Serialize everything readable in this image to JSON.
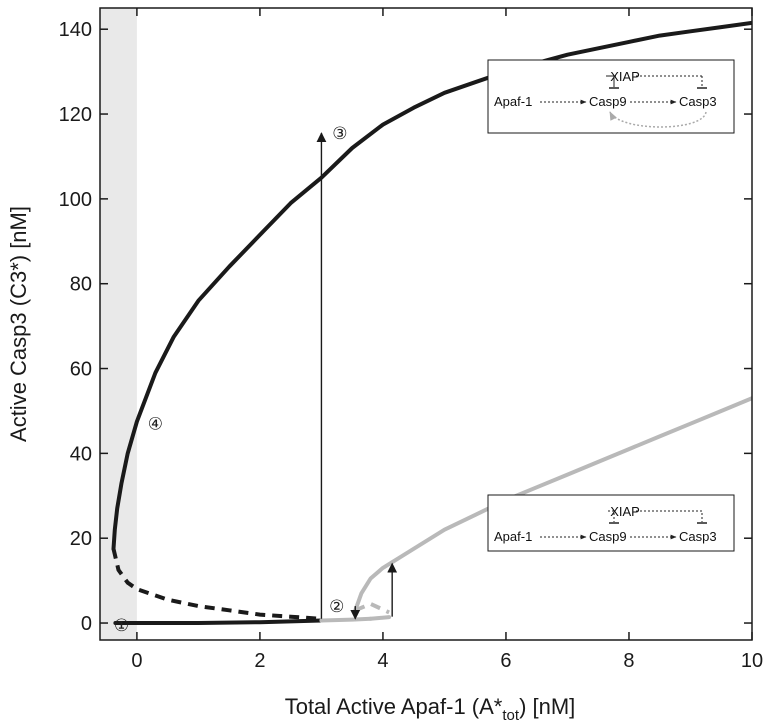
{
  "chart_data": {
    "type": "line",
    "xlabel_main": "Total Active Apaf-1 (A*",
    "xlabel_sub": "tot",
    "xlabel_tail": ") [nM]",
    "ylabel": "Active Casp3 (C3*) [nM]",
    "xlim": [
      -0.6,
      10
    ],
    "ylim": [
      -4,
      145
    ],
    "x_ticks": [
      "0",
      "2",
      "4",
      "6",
      "8",
      "10"
    ],
    "x_tick_values": [
      0,
      2,
      4,
      6,
      8,
      10
    ],
    "y_ticks": [
      "0",
      "20",
      "40",
      "60",
      "80",
      "100",
      "120",
      "140"
    ],
    "y_tick_values": [
      0,
      20,
      40,
      60,
      80,
      100,
      120,
      140
    ],
    "grid": false,
    "shaded_region": {
      "x": [
        -0.6,
        0
      ],
      "color": "#e9e9e9"
    },
    "series": [
      {
        "style": "solid",
        "color": "#1a1a1a",
        "points": [
          [
            -0.38,
            17.5
          ],
          [
            -0.36,
            22
          ],
          [
            -0.32,
            27
          ],
          [
            -0.25,
            33
          ],
          [
            -0.15,
            40
          ],
          [
            0,
            47.5
          ],
          [
            0.3,
            59
          ],
          [
            0.6,
            67.5
          ],
          [
            1,
            76
          ],
          [
            1.5,
            84
          ],
          [
            2,
            91.5
          ],
          [
            2.5,
            99
          ],
          [
            3,
            105
          ],
          [
            3.5,
            112
          ],
          [
            4,
            117.5
          ],
          [
            4.5,
            121.5
          ],
          [
            5,
            125
          ],
          [
            5.5,
            127.5
          ],
          [
            6,
            130
          ],
          [
            6.5,
            132
          ],
          [
            7,
            134
          ],
          [
            7.5,
            135.5
          ],
          [
            8,
            137
          ],
          [
            8.5,
            138.5
          ],
          [
            9,
            139.5
          ],
          [
            9.5,
            140.5
          ],
          [
            10,
            141.5
          ]
        ]
      },
      {
        "style": "dashed",
        "color": "#1a1a1a",
        "points": [
          [
            -0.38,
            17.5
          ],
          [
            -0.3,
            12.5
          ],
          [
            -0.15,
            9.5
          ],
          [
            0,
            8
          ],
          [
            0.5,
            5.5
          ],
          [
            1,
            4
          ],
          [
            1.5,
            3
          ],
          [
            2,
            2
          ],
          [
            2.5,
            1.5
          ],
          [
            3,
            1
          ]
        ]
      },
      {
        "style": "solid",
        "color": "#1a1a1a",
        "points": [
          [
            -0.35,
            0
          ],
          [
            1,
            0
          ],
          [
            2,
            0.2
          ],
          [
            3,
            0.6
          ]
        ]
      },
      {
        "style": "solid",
        "color": "#b9b9b9",
        "points": [
          [
            3,
            0.6
          ],
          [
            3.5,
            0.8
          ],
          [
            3.8,
            1
          ]
        ]
      },
      {
        "style": "solid",
        "color": "#b9b9b9",
        "points": [
          [
            3.8,
            1
          ],
          [
            4.1,
            1.4
          ]
        ]
      },
      {
        "style": "dashed",
        "color": "#b9b9b9",
        "points": [
          [
            3.55,
            3
          ],
          [
            3.8,
            4.5
          ],
          [
            4.1,
            2.5
          ]
        ]
      },
      {
        "style": "solid",
        "color": "#b9b9b9",
        "points": [
          [
            3.55,
            3
          ],
          [
            3.65,
            7
          ],
          [
            3.8,
            10.5
          ],
          [
            4,
            13
          ],
          [
            4.5,
            17.5
          ],
          [
            5,
            22
          ],
          [
            5.5,
            25.5
          ],
          [
            6,
            29
          ],
          [
            6.5,
            32
          ],
          [
            7,
            35
          ],
          [
            7.5,
            38
          ],
          [
            8,
            41
          ],
          [
            8.5,
            44
          ],
          [
            9,
            47
          ],
          [
            9.5,
            50
          ],
          [
            10,
            53
          ]
        ]
      }
    ],
    "arrows": [
      {
        "x": 3,
        "from": 1,
        "to": 115.5,
        "color": "#1a1a1a"
      },
      {
        "x": 3.55,
        "from": 4,
        "to": 1,
        "color": "#1a1a1a"
      },
      {
        "x": 4.15,
        "from": 1.5,
        "to": 14,
        "color": "#1a1a1a"
      }
    ],
    "markers": [
      {
        "label": "①",
        "x": -0.25,
        "y": -0.5
      },
      {
        "label": "②",
        "x": 3.25,
        "y": 4
      },
      {
        "label": "③",
        "x": 3.3,
        "y": 115.5
      },
      {
        "label": "④",
        "x": 0.3,
        "y": 47
      }
    ],
    "insets": [
      {
        "xiap": "XIAP",
        "apaf": "Apaf-1",
        "casp9": "Casp9",
        "casp3": "Casp3",
        "feedback": true
      },
      {
        "xiap": "XIAP",
        "apaf": "Apaf-1",
        "casp9": "Casp9",
        "casp3": "Casp3",
        "feedback": false
      }
    ]
  }
}
